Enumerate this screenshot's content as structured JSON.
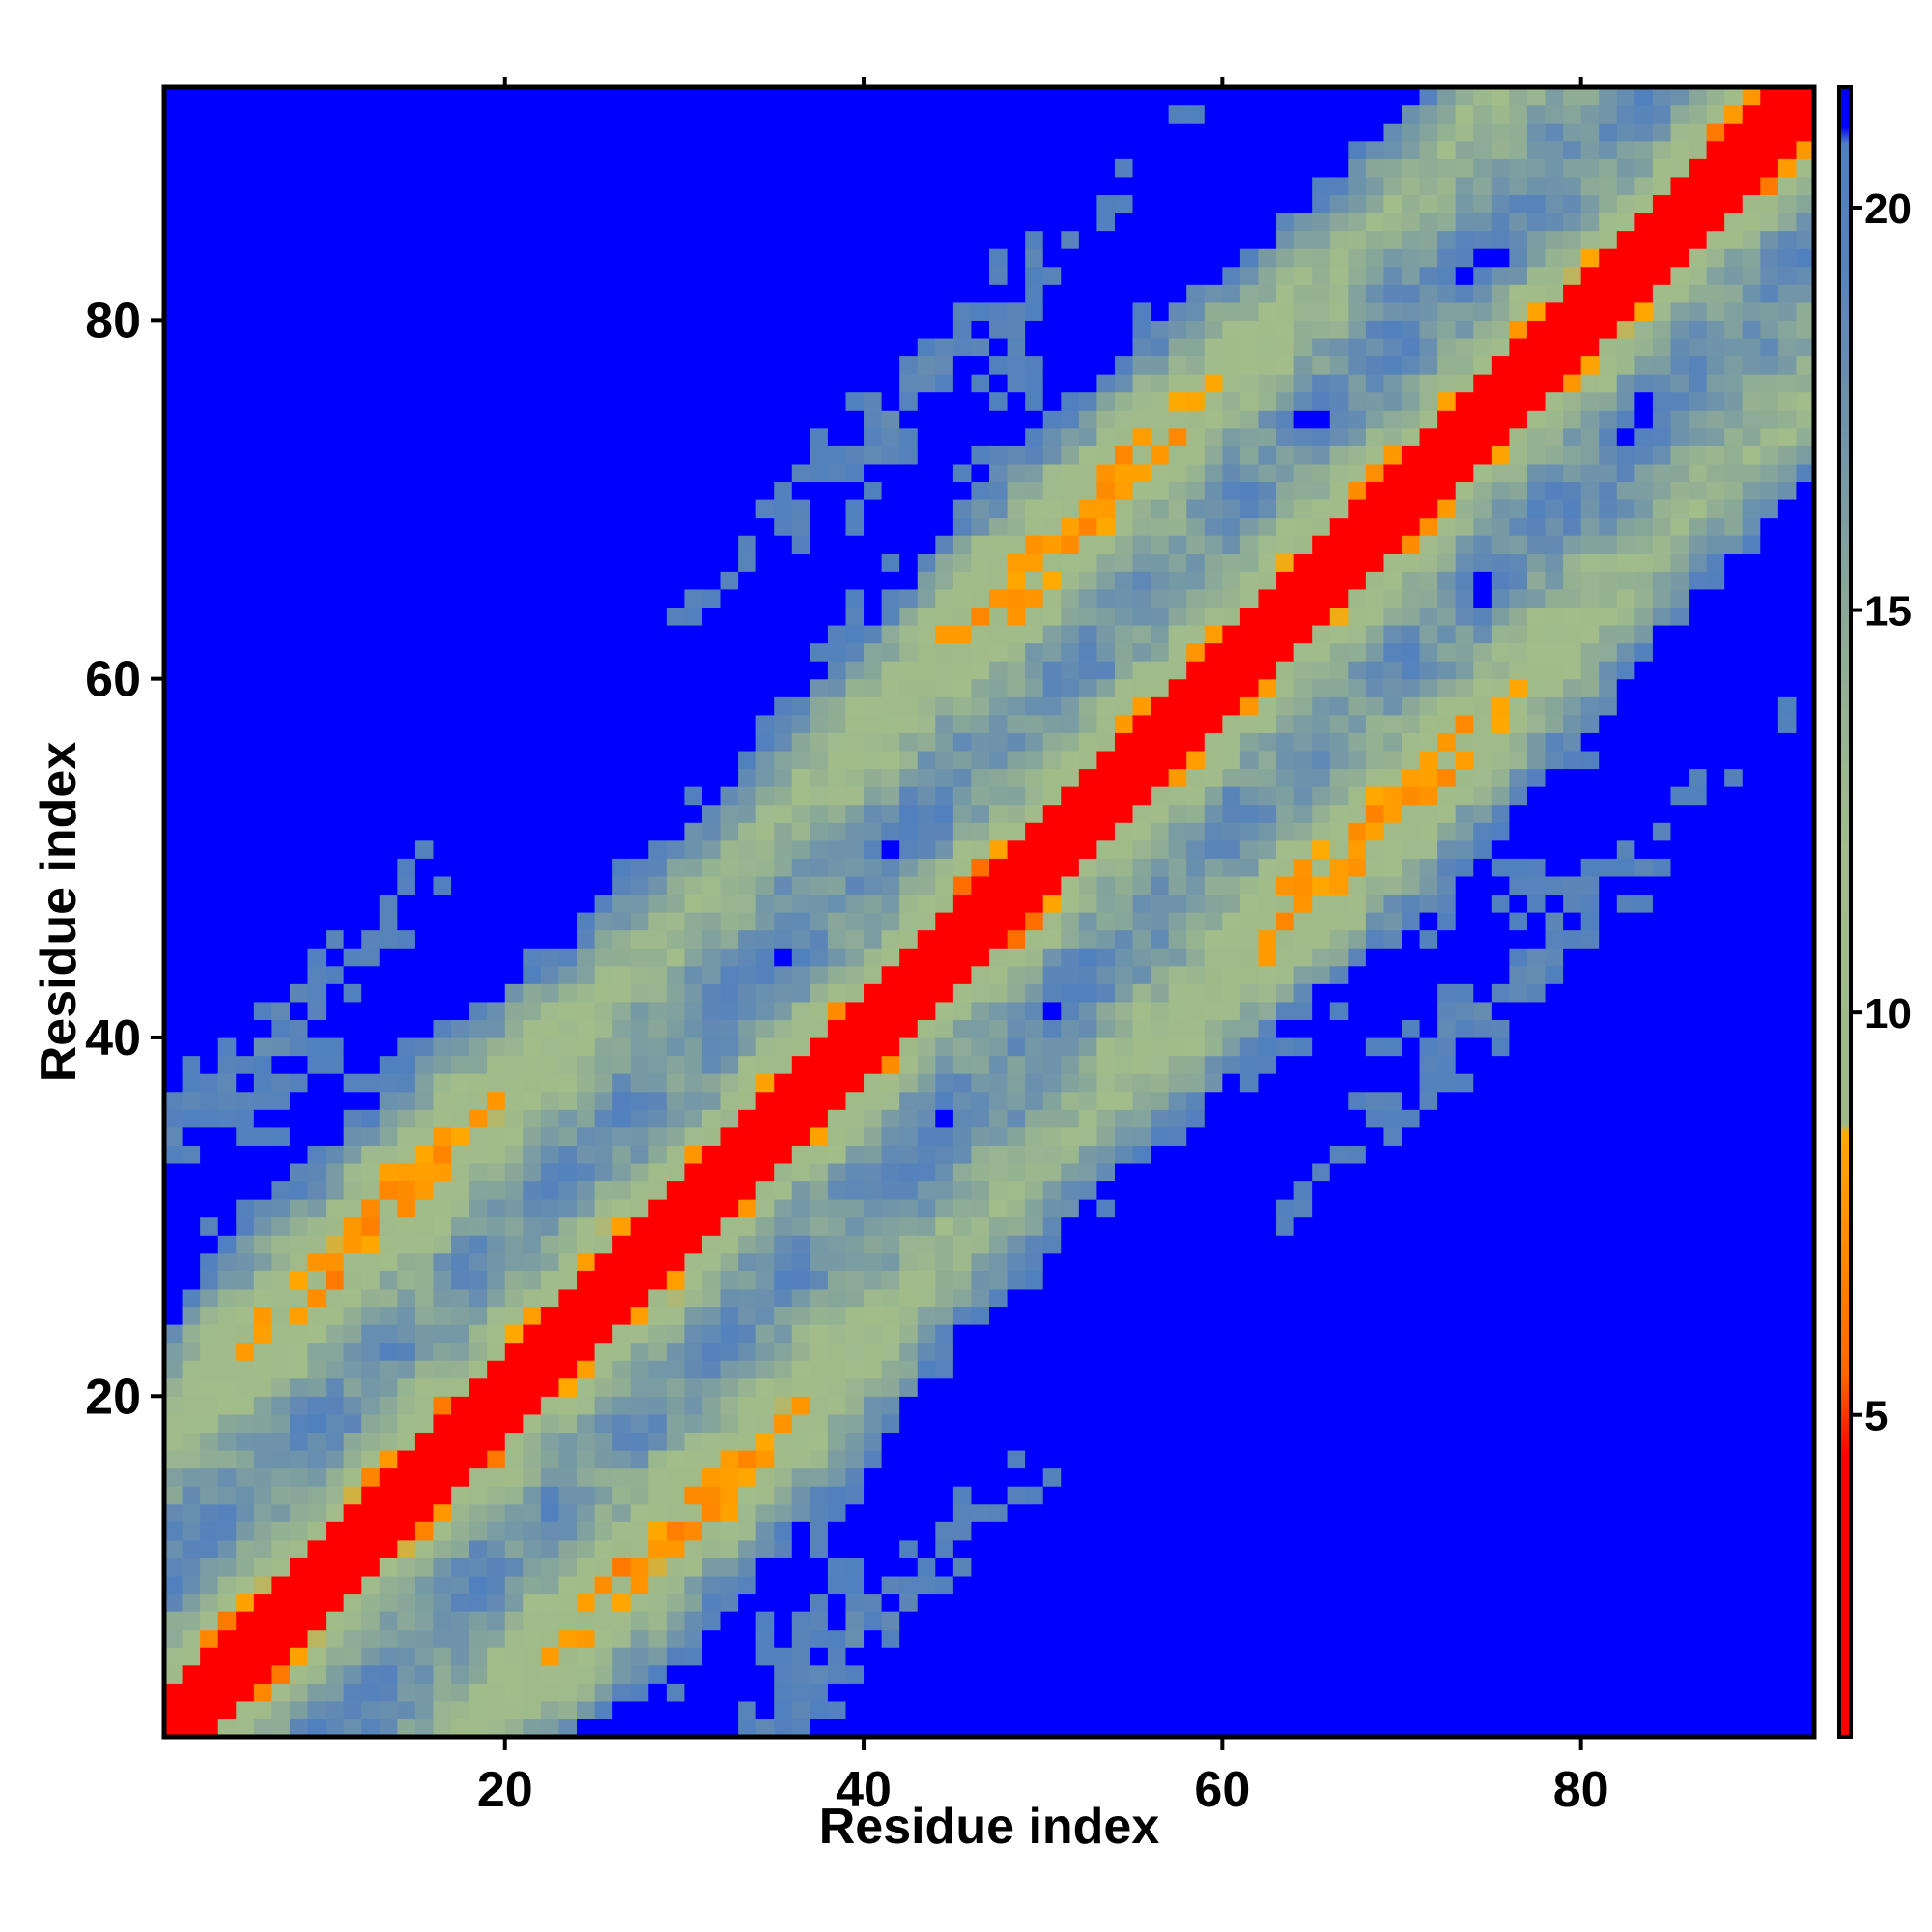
{
  "chart_data": {
    "type": "heatmap",
    "title": "",
    "xlabel": "Residue index",
    "ylabel": "Residue index",
    "n_residues": 92,
    "xlim": [
      1,
      92
    ],
    "ylim": [
      1,
      92
    ],
    "x_ticks": [
      20,
      40,
      60,
      80
    ],
    "y_ticks": [
      20,
      40,
      60,
      80
    ],
    "colorbar": {
      "ticks": [
        5,
        10,
        15,
        20
      ],
      "range": [
        1,
        21.5
      ],
      "stops": [
        {
          "value": 1,
          "color": "#ff0000"
        },
        {
          "value": 4.5,
          "color": "#ff0000"
        },
        {
          "value": 5.5,
          "color": "#ff6600"
        },
        {
          "value": 8.5,
          "color": "#ffaa00"
        },
        {
          "value": 8.6,
          "color": "#9fba88"
        },
        {
          "value": 12,
          "color": "#a2bd8a"
        },
        {
          "value": 15,
          "color": "#8aa898"
        },
        {
          "value": 19,
          "color": "#5b85b8"
        },
        {
          "value": 20.8,
          "color": "#4f7fc0"
        },
        {
          "value": 21,
          "color": "#0000ff"
        },
        {
          "value": 21.5,
          "color": "#0000ff"
        }
      ]
    },
    "value_meaning": "distance between residue pairs; diagonal band near 1, blue regions above 21",
    "grid": false,
    "legend": "colorbar-right"
  },
  "colors": {
    "far": "#0000ff",
    "near": "#ff0000",
    "axis": "#000000"
  }
}
